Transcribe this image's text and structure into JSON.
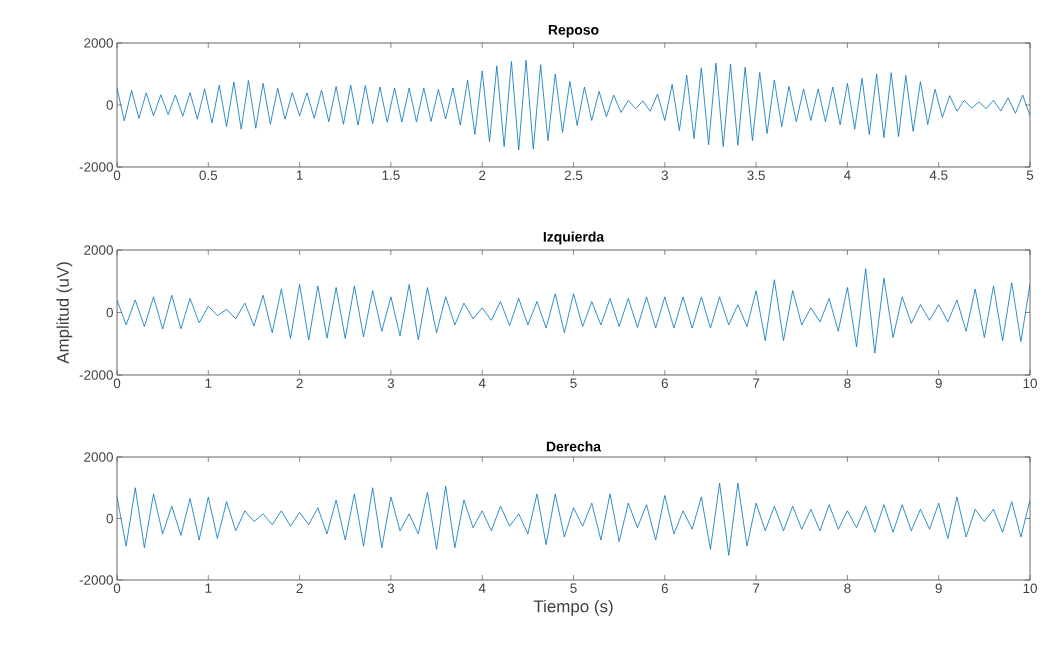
{
  "chart_data": [
    {
      "type": "line",
      "title": "Reposo",
      "color": "#0072bd",
      "xlim": [
        0,
        5
      ],
      "ylim": [
        -2000,
        2000
      ],
      "xticks": [
        0,
        0.5,
        1,
        1.5,
        2,
        2.5,
        3,
        3.5,
        4,
        4.5,
        5
      ],
      "yticks": [
        -2000,
        0,
        2000
      ],
      "x": [
        0,
        0.04,
        0.08,
        0.12,
        0.16,
        0.2,
        0.24,
        0.28,
        0.32,
        0.36,
        0.4,
        0.44,
        0.48,
        0.52,
        0.56,
        0.6,
        0.64,
        0.68,
        0.72,
        0.76,
        0.8,
        0.84,
        0.88,
        0.92,
        0.96,
        1,
        1.04,
        1.08,
        1.12,
        1.16,
        1.2,
        1.24,
        1.28,
        1.32,
        1.36,
        1.4,
        1.44,
        1.48,
        1.52,
        1.56,
        1.6,
        1.64,
        1.68,
        1.72,
        1.76,
        1.8,
        1.84,
        1.88,
        1.92,
        1.96,
        2,
        2.04,
        2.08,
        2.12,
        2.16,
        2.2,
        2.24,
        2.28,
        2.32,
        2.36,
        2.4,
        2.44,
        2.48,
        2.52,
        2.56,
        2.6,
        2.64,
        2.68,
        2.72,
        2.76,
        2.8,
        2.84,
        2.88,
        2.92,
        2.96,
        3,
        3.04,
        3.08,
        3.12,
        3.16,
        3.2,
        3.24,
        3.28,
        3.32,
        3.36,
        3.4,
        3.44,
        3.48,
        3.52,
        3.56,
        3.6,
        3.64,
        3.68,
        3.72,
        3.76,
        3.8,
        3.84,
        3.88,
        3.92,
        3.96,
        4,
        4.04,
        4.08,
        4.12,
        4.16,
        4.2,
        4.24,
        4.28,
        4.32,
        4.36,
        4.4,
        4.44,
        4.48,
        4.52,
        4.56,
        4.6,
        4.64,
        4.68,
        4.72,
        4.76,
        4.8,
        4.84,
        4.88,
        4.92,
        4.96,
        5
      ],
      "values": [
        550,
        -510,
        470,
        -430,
        390,
        -350,
        330,
        -310,
        320,
        -360,
        400,
        -460,
        520,
        -580,
        640,
        -700,
        740,
        -780,
        790,
        -750,
        700,
        -620,
        540,
        -460,
        400,
        -350,
        390,
        -430,
        480,
        -540,
        600,
        -620,
        640,
        -650,
        630,
        -600,
        580,
        -560,
        550,
        -550,
        550,
        -550,
        550,
        -530,
        500,
        -450,
        550,
        -650,
        800,
        -950,
        1100,
        -1180,
        1260,
        -1340,
        1400,
        -1450,
        1440,
        -1420,
        1300,
        -1150,
        1000,
        -880,
        760,
        -660,
        580,
        -500,
        440,
        -380,
        320,
        -240,
        150,
        -120,
        130,
        -200,
        350,
        -500,
        660,
        -820,
        960,
        -1080,
        1200,
        -1280,
        1350,
        -1340,
        1320,
        -1300,
        1220,
        -1150,
        1050,
        -920,
        800,
        -700,
        600,
        -540,
        510,
        -500,
        520,
        -540,
        580,
        -640,
        700,
        -780,
        860,
        -950,
        1000,
        -1050,
        1040,
        -1020,
        950,
        -850,
        750,
        -630,
        510,
        -400,
        300,
        -200,
        150,
        -100,
        100,
        -120,
        150,
        -190,
        230,
        -270,
        320,
        -350
      ]
    },
    {
      "type": "line",
      "title": "Izquierda",
      "ylabel": "Amplitud (uV)",
      "color": "#0072bd",
      "xlim": [
        0,
        10
      ],
      "ylim": [
        -2000,
        2000
      ],
      "xticks": [
        0,
        1,
        2,
        3,
        4,
        5,
        6,
        7,
        8,
        9,
        10
      ],
      "yticks": [
        -2000,
        0,
        2000
      ],
      "x": [
        0,
        0.1,
        0.2,
        0.3,
        0.4,
        0.5,
        0.6,
        0.7,
        0.8,
        0.9,
        1,
        1.1,
        1.2,
        1.3,
        1.4,
        1.5,
        1.6,
        1.7,
        1.8,
        1.9,
        2,
        2.1,
        2.2,
        2.3,
        2.4,
        2.5,
        2.6,
        2.7,
        2.8,
        2.9,
        3,
        3.1,
        3.2,
        3.3,
        3.4,
        3.5,
        3.6,
        3.7,
        3.8,
        3.9,
        4,
        4.1,
        4.2,
        4.3,
        4.4,
        4.5,
        4.6,
        4.7,
        4.8,
        4.9,
        5,
        5.1,
        5.2,
        5.3,
        5.4,
        5.5,
        5.6,
        5.7,
        5.8,
        5.9,
        6,
        6.1,
        6.2,
        6.3,
        6.4,
        6.5,
        6.6,
        6.7,
        6.8,
        6.9,
        7,
        7.1,
        7.2,
        7.3,
        7.4,
        7.5,
        7.6,
        7.7,
        7.8,
        7.9,
        8,
        8.1,
        8.2,
        8.3,
        8.4,
        8.5,
        8.6,
        8.7,
        8.8,
        8.9,
        9,
        9.1,
        9.2,
        9.3,
        9.4,
        9.5,
        9.6,
        9.7,
        9.8,
        9.9,
        10
      ],
      "values": [
        400,
        -400,
        400,
        -450,
        500,
        -530,
        550,
        -520,
        450,
        -330,
        200,
        -100,
        100,
        -200,
        300,
        -430,
        550,
        -650,
        750,
        -830,
        900,
        -880,
        850,
        -820,
        800,
        -830,
        850,
        -780,
        700,
        -600,
        500,
        -750,
        900,
        -870,
        800,
        -650,
        500,
        -400,
        300,
        -200,
        150,
        -250,
        350,
        -420,
        450,
        -400,
        350,
        -500,
        600,
        -650,
        600,
        -450,
        350,
        -400,
        450,
        -450,
        450,
        -480,
        500,
        -500,
        500,
        -500,
        500,
        -500,
        500,
        -500,
        500,
        -400,
        250,
        -450,
        700,
        -900,
        1050,
        -900,
        700,
        -400,
        150,
        -300,
        450,
        -600,
        800,
        -1100,
        1400,
        -1300,
        1100,
        -800,
        500,
        -350,
        250,
        -250,
        250,
        -300,
        400,
        -600,
        750,
        -800,
        850,
        -900,
        950,
        -930,
        900
      ]
    },
    {
      "type": "line",
      "title": "Derecha",
      "xlabel": "Tiempo (s)",
      "color": "#0072bd",
      "xlim": [
        0,
        10
      ],
      "ylim": [
        -2000,
        2000
      ],
      "xticks": [
        0,
        1,
        2,
        3,
        4,
        5,
        6,
        7,
        8,
        9,
        10
      ],
      "yticks": [
        -2000,
        0,
        2000
      ],
      "x": [
        0,
        0.1,
        0.2,
        0.3,
        0.4,
        0.5,
        0.6,
        0.7,
        0.8,
        0.9,
        1,
        1.1,
        1.2,
        1.3,
        1.4,
        1.5,
        1.6,
        1.7,
        1.8,
        1.9,
        2,
        2.1,
        2.2,
        2.3,
        2.4,
        2.5,
        2.6,
        2.7,
        2.8,
        2.9,
        3,
        3.1,
        3.2,
        3.3,
        3.4,
        3.5,
        3.6,
        3.7,
        3.8,
        3.9,
        4,
        4.1,
        4.2,
        4.3,
        4.4,
        4.5,
        4.6,
        4.7,
        4.8,
        4.9,
        5,
        5.1,
        5.2,
        5.3,
        5.4,
        5.5,
        5.6,
        5.7,
        5.8,
        5.9,
        6,
        6.1,
        6.2,
        6.3,
        6.4,
        6.5,
        6.6,
        6.7,
        6.8,
        6.9,
        7,
        7.1,
        7.2,
        7.3,
        7.4,
        7.5,
        7.6,
        7.7,
        7.8,
        7.9,
        8,
        8.1,
        8.2,
        8.3,
        8.4,
        8.5,
        8.6,
        8.7,
        8.8,
        8.9,
        9,
        9.1,
        9.2,
        9.3,
        9.4,
        9.5,
        9.6,
        9.7,
        9.8,
        9.9,
        10
      ],
      "values": [
        700,
        -900,
        1000,
        -950,
        800,
        -500,
        400,
        -550,
        650,
        -700,
        700,
        -650,
        550,
        -400,
        250,
        -100,
        150,
        -200,
        250,
        -250,
        200,
        -200,
        350,
        -500,
        600,
        -700,
        800,
        -900,
        1000,
        -950,
        700,
        -400,
        150,
        -500,
        850,
        -1000,
        1050,
        -950,
        600,
        -300,
        250,
        -400,
        400,
        -250,
        150,
        -500,
        800,
        -850,
        800,
        -600,
        350,
        -250,
        500,
        -700,
        800,
        -750,
        500,
        -300,
        450,
        -700,
        750,
        -500,
        250,
        -350,
        700,
        -1000,
        1150,
        -1200,
        1150,
        -900,
        500,
        -400,
        400,
        -400,
        400,
        -350,
        300,
        -400,
        450,
        -350,
        250,
        -300,
        400,
        -450,
        450,
        -450,
        450,
        -400,
        300,
        -350,
        500,
        -650,
        700,
        -600,
        300,
        -100,
        300,
        -450,
        550,
        -600,
        600
      ]
    }
  ]
}
